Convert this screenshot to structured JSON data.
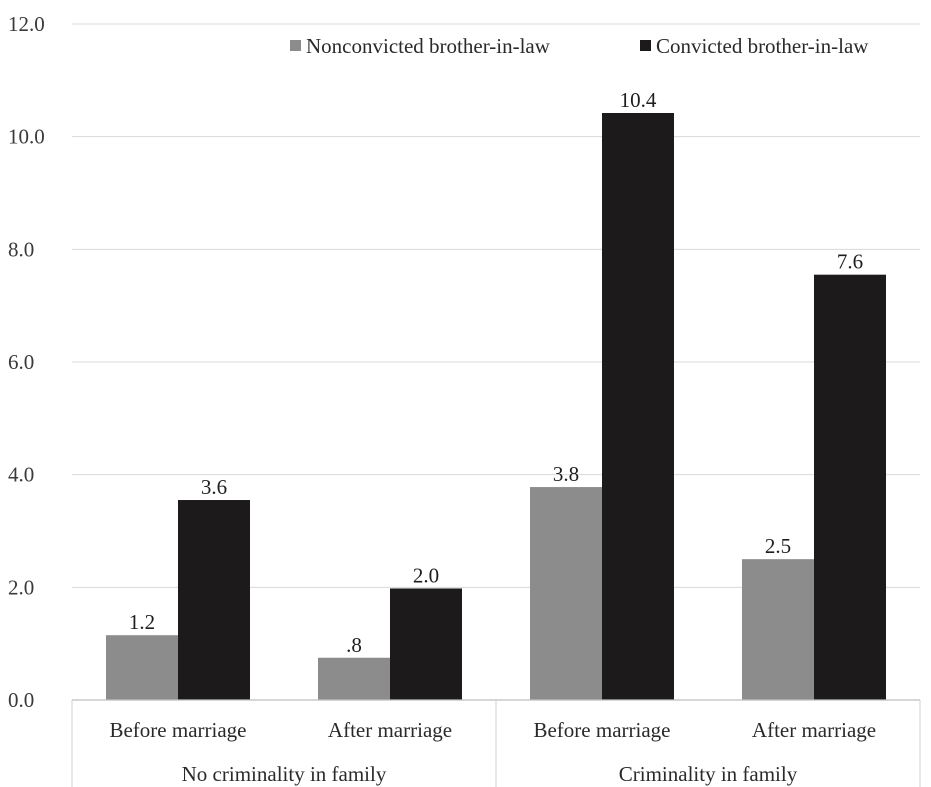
{
  "chart_data": {
    "type": "bar",
    "yticks": [
      "0.0",
      "2.0",
      "4.0",
      "6.0",
      "8.0",
      "10.0",
      "12.0"
    ],
    "ylim": [
      0,
      12
    ],
    "grid": true,
    "legend_position": "top-right",
    "categories": [
      "Before marriage",
      "After marriage",
      "Before marriage",
      "After marriage"
    ],
    "groups": [
      {
        "label": "No criminality in family",
        "categories": [
          0,
          1
        ]
      },
      {
        "label": "Criminality in family",
        "categories": [
          2,
          3
        ]
      }
    ],
    "series": [
      {
        "name": "Nonconvicted brother-in-law",
        "color": "#8c8c8c",
        "values": [
          1.15,
          0.75,
          3.78,
          2.5
        ],
        "labels": [
          "1.2",
          ".8",
          "3.8",
          "2.5"
        ]
      },
      {
        "name": "Convicted brother-in-law",
        "color": "#1c1a1a",
        "values": [
          3.55,
          1.98,
          10.42,
          7.55
        ],
        "labels": [
          "3.6",
          "2.0",
          "10.4",
          "7.6"
        ]
      }
    ]
  }
}
